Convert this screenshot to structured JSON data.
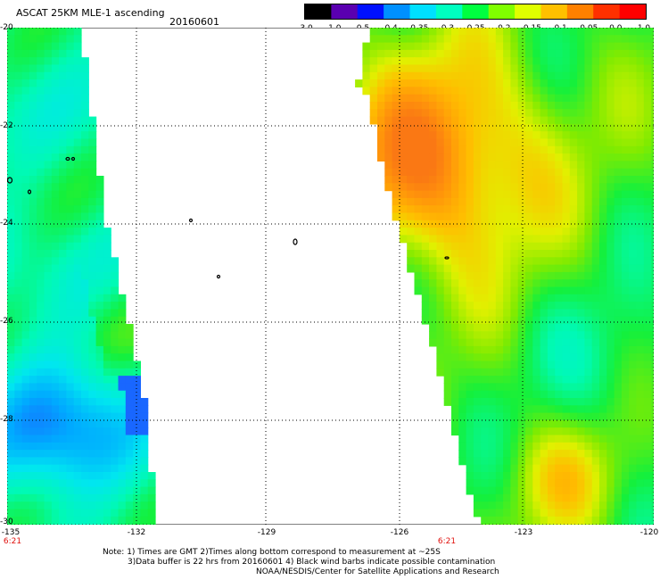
{
  "header": {
    "title": "ASCAT 25KM MLE-1 ascending",
    "date": "20160601"
  },
  "colorbar": {
    "labels": [
      "-3.0",
      "-1.0",
      "-0.5",
      "-0.4",
      "-0.35",
      "-0.3",
      "-0.25",
      "-0.2",
      "-0.15",
      "-0.1",
      "-0.05",
      "0.0",
      "1.0"
    ],
    "colors": [
      "#000000",
      "#5a00b0",
      "#0010ff",
      "#0090ff",
      "#00e0ff",
      "#00ffc0",
      "#00ff40",
      "#80ff00",
      "#e0ff00",
      "#ffc000",
      "#ff8000",
      "#ff3000",
      "#ff0000"
    ]
  },
  "map": {
    "lat_labels": [
      "-20",
      "-22",
      "-24",
      "-26",
      "-28",
      "-30"
    ],
    "lon_labels": [
      "-135",
      "-132",
      "-129",
      "-126",
      "-123",
      "-120"
    ],
    "pass_times": [
      "6:21",
      "6:21"
    ],
    "lat_range": [
      -30,
      -20
    ],
    "lon_range": [
      -135,
      -120
    ]
  },
  "notes": {
    "line1": "Note: 1) Times are GMT 2)Times along bottom correspond to measurement at ~25S",
    "line2": "3)Data buffer is 22 hrs from 20160601 4) Black wind barbs indicate possible contamination",
    "line3": "NOAA/NESDIS/Center for Satellite Applications and Research"
  }
}
